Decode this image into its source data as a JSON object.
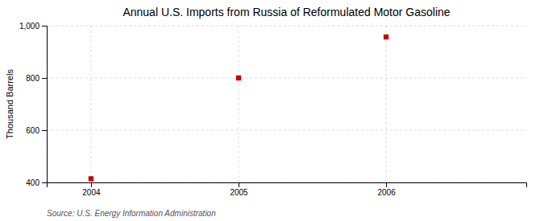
{
  "chart_data": {
    "type": "scatter",
    "title": "Annual U.S. Imports from Russia of Reformulated Motor Gasoline",
    "ylabel": "Thousand Barrels",
    "source": "Source: U.S. Energy Information Administration",
    "x": [
      2004,
      2005,
      2006
    ],
    "values": [
      414,
      800,
      957
    ],
    "color": "#cc0000",
    "marker": "square",
    "xlim": [
      2003.7,
      2006.95
    ],
    "ylim": [
      400,
      1000
    ],
    "xticks": [
      2004,
      2005,
      2006
    ],
    "yticks": [
      400,
      600,
      800,
      {
        "value": 1000,
        "label": "1,000"
      }
    ],
    "grid": true
  }
}
